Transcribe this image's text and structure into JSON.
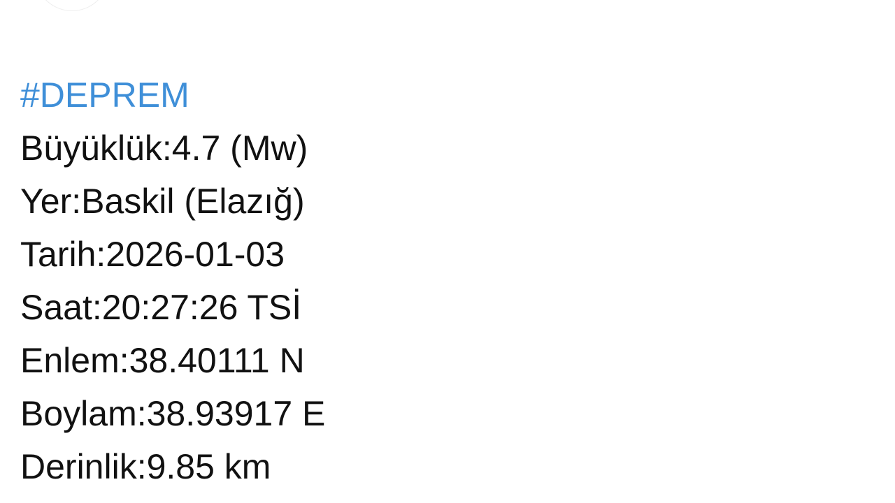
{
  "post": {
    "hashtag": "#DEPREM",
    "lines": [
      "Büyüklük:4.7 (Mw)",
      "Yer:Baskil (Elazığ)",
      "Tarih:2026-01-03",
      "Saat:20:27:26 TSİ",
      "Enlem:38.40111 N",
      "Boylam:38.93917 E",
      "Derinlik:9.85 km"
    ]
  },
  "colors": {
    "hashtag": "#3f8fd8",
    "text": "#111111"
  }
}
